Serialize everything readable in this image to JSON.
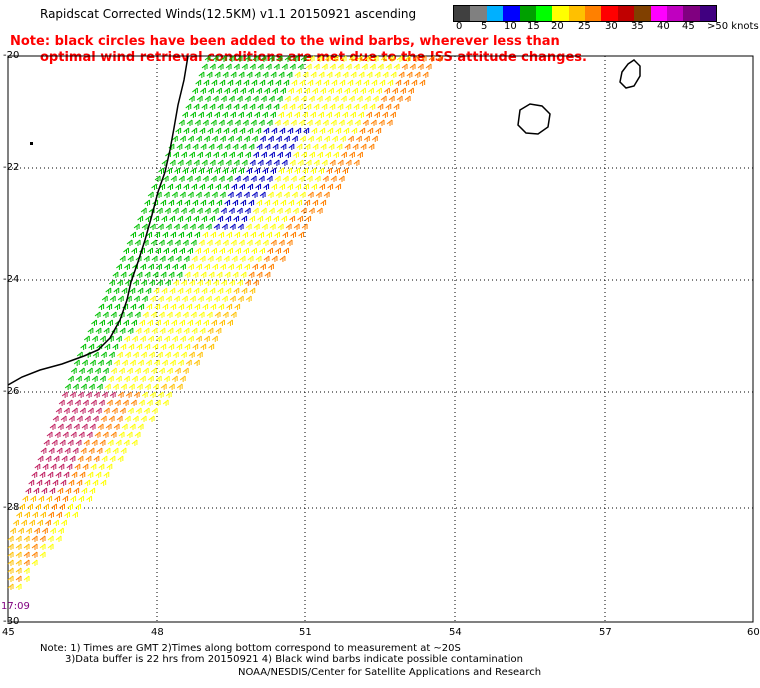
{
  "title": "Rapidscat Corrected Winds(12.5KM) v1.1 20150921 ascending",
  "note": {
    "line1": "Note: black circles have been added to the wind barbs, wherever less than",
    "line2": "optimal wind retrieval conditions are met due to the ISS attitude changes."
  },
  "legend": {
    "swatches": [
      {
        "color": "#404040"
      },
      {
        "color": "#808080"
      },
      {
        "color": "#00b0ff"
      },
      {
        "color": "#0000ff"
      },
      {
        "color": "#00a000"
      },
      {
        "color": "#00ff00"
      },
      {
        "color": "#ffff00"
      },
      {
        "color": "#ffc000"
      },
      {
        "color": "#ff8000"
      },
      {
        "color": "#ff0000"
      },
      {
        "color": "#c00000"
      },
      {
        "color": "#804000"
      },
      {
        "color": "#ff00ff"
      },
      {
        "color": "#c000c0"
      },
      {
        "color": "#800080"
      },
      {
        "color": "#400080"
      }
    ],
    "labels": [
      "0",
      "5",
      "10",
      "15",
      "20",
      "25",
      "30",
      "35",
      "40",
      "45",
      ">50 knots"
    ]
  },
  "map": {
    "lat_ticks": [
      "-20",
      "-22",
      "-24",
      "-26",
      "-28",
      "-30"
    ],
    "lon_ticks": [
      "45",
      "48",
      "51",
      "54",
      "57",
      "60"
    ],
    "time": "17:09",
    "wind_colors": {
      "light": "#ffff00",
      "moderate": "#ffc000",
      "fresh": "#ff8000",
      "strong": "#ff0000",
      "gale": "#c02060",
      "calm": "#00c000",
      "slow": "#0000c0"
    }
  },
  "footer": {
    "line1": "Note: 1) Times are GMT 2)Times along bottom correspond to measurement at ~20S",
    "line2": "3)Data buffer is 22 hrs from 20150921 4) Black wind barbs indicate possible contamination",
    "line3": "NOAA/NESDIS/Center for Satellite Applications and Research"
  }
}
